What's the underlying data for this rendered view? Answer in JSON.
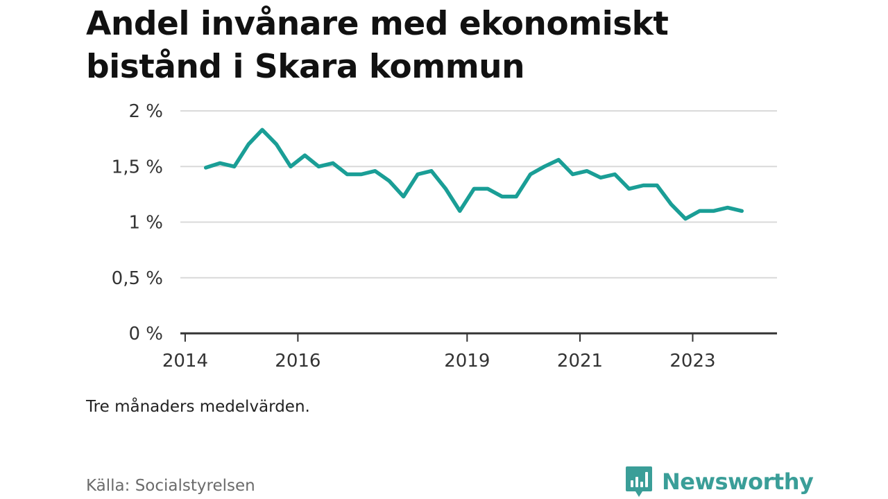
{
  "title": "Andel invånare med ekonomiskt bistånd i Skara kommun",
  "note": "Tre månaders medelvärden.",
  "source": "Källa: Socialstyrelsen",
  "brand": "Newsworthy",
  "colors": {
    "line": "#1a9e96",
    "grid": "#d9d9d9",
    "axis": "#333333",
    "brand": "#3a9e98"
  },
  "chart_data": {
    "type": "line",
    "title": "Andel invånare med ekonomiskt bistånd i Skara kommun",
    "xlabel": "",
    "ylabel": "",
    "x_ticks": [
      "2014",
      "2016",
      "2019",
      "2021",
      "2023"
    ],
    "y_ticks": [
      "0 %",
      "0,5 %",
      "1 %",
      "1,5 %",
      "2 %"
    ],
    "ylim": [
      0,
      2
    ],
    "xlim": [
      "2013-12-01",
      "2024-06-30"
    ],
    "grid": true,
    "legend": "none",
    "series": [
      {
        "values": [
          {
            "x": "2014-05-15",
            "y": 1.49
          },
          {
            "x": "2014-08-15",
            "y": 1.53
          },
          {
            "x": "2014-11-15",
            "y": 1.5
          },
          {
            "x": "2015-02-15",
            "y": 1.7
          },
          {
            "x": "2015-05-15",
            "y": 1.83
          },
          {
            "x": "2015-08-15",
            "y": 1.7
          },
          {
            "x": "2015-11-15",
            "y": 1.5
          },
          {
            "x": "2016-02-15",
            "y": 1.6
          },
          {
            "x": "2016-05-15",
            "y": 1.5
          },
          {
            "x": "2016-08-15",
            "y": 1.53
          },
          {
            "x": "2016-11-15",
            "y": 1.43
          },
          {
            "x": "2017-02-15",
            "y": 1.43
          },
          {
            "x": "2017-05-15",
            "y": 1.46
          },
          {
            "x": "2017-08-15",
            "y": 1.37
          },
          {
            "x": "2017-11-15",
            "y": 1.23
          },
          {
            "x": "2018-02-15",
            "y": 1.43
          },
          {
            "x": "2018-05-15",
            "y": 1.46
          },
          {
            "x": "2018-08-15",
            "y": 1.3
          },
          {
            "x": "2018-11-15",
            "y": 1.1
          },
          {
            "x": "2019-02-15",
            "y": 1.3
          },
          {
            "x": "2019-05-15",
            "y": 1.3
          },
          {
            "x": "2019-08-15",
            "y": 1.23
          },
          {
            "x": "2019-11-15",
            "y": 1.23
          },
          {
            "x": "2020-02-15",
            "y": 1.43
          },
          {
            "x": "2020-05-15",
            "y": 1.5
          },
          {
            "x": "2020-08-15",
            "y": 1.56
          },
          {
            "x": "2020-11-15",
            "y": 1.43
          },
          {
            "x": "2021-02-15",
            "y": 1.46
          },
          {
            "x": "2021-05-15",
            "y": 1.4
          },
          {
            "x": "2021-08-15",
            "y": 1.43
          },
          {
            "x": "2021-11-15",
            "y": 1.3
          },
          {
            "x": "2022-02-15",
            "y": 1.33
          },
          {
            "x": "2022-05-15",
            "y": 1.33
          },
          {
            "x": "2022-08-15",
            "y": 1.16
          },
          {
            "x": "2022-11-15",
            "y": 1.03
          },
          {
            "x": "2023-02-15",
            "y": 1.1
          },
          {
            "x": "2023-05-15",
            "y": 1.1
          },
          {
            "x": "2023-08-15",
            "y": 1.13
          },
          {
            "x": "2023-11-15",
            "y": 1.1
          }
        ]
      }
    ]
  }
}
